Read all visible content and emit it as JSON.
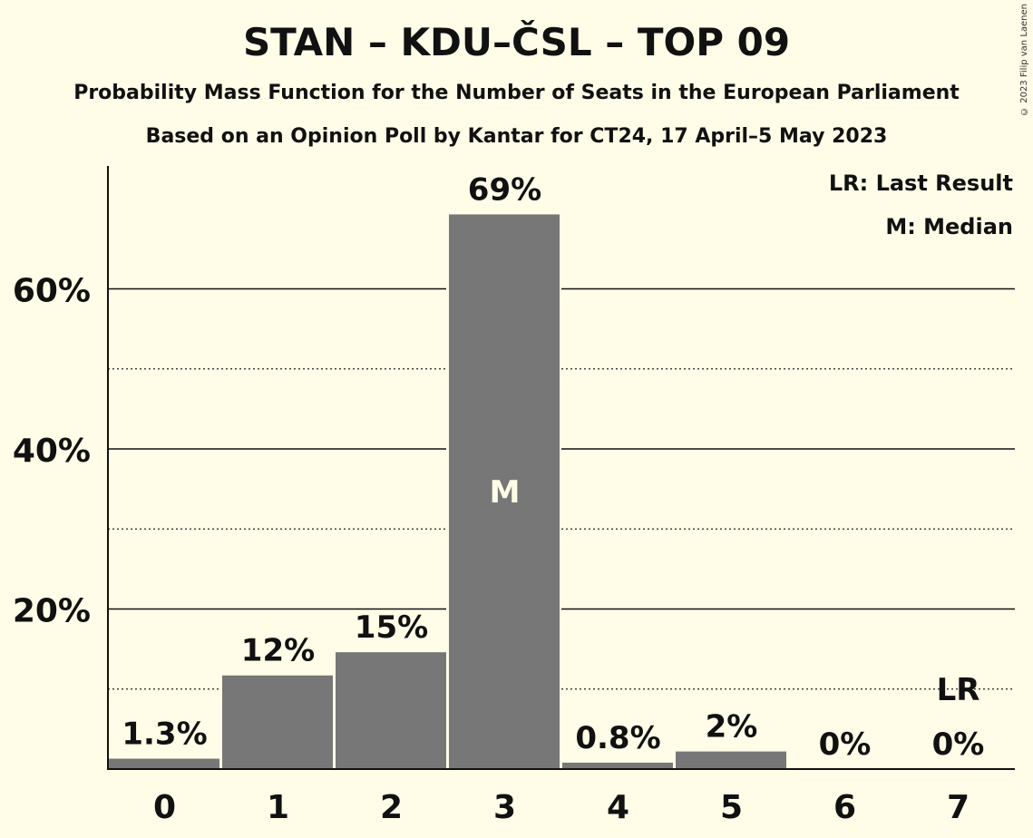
{
  "title": "STAN – KDU–ČSL – TOP 09",
  "subtitle": "Probability Mass Function for the Number of Seats in the European Parliament",
  "subtitle2": "Based on an Opinion Poll by Kantar for CT24, 17 April–5 May 2023",
  "copyright": "© 2023 Filip van Laenen",
  "legend": [
    "LR: Last Result",
    "M: Median"
  ],
  "chart_data": {
    "type": "bar",
    "categories": [
      "0",
      "1",
      "2",
      "3",
      "4",
      "5",
      "6",
      "7"
    ],
    "values": [
      1.3,
      11.7,
      14.6,
      69.3,
      0.8,
      2.2,
      0,
      0
    ],
    "data_labels": [
      "1.3%",
      "12%",
      "15%",
      "69%",
      "0.8%",
      "2%",
      "0%",
      "0%"
    ],
    "ylim": [
      0,
      75
    ],
    "yticks": [
      20,
      40,
      60
    ],
    "ytick_labels": [
      "20%",
      "40%",
      "60%"
    ],
    "minor_gridlines": [
      10,
      30,
      50
    ],
    "median_index": 3,
    "median_label": "M",
    "last_result_index": 7,
    "last_result_label": "LR",
    "last_result_value": 10,
    "bar_color": "#777777",
    "background": "#fffde7"
  }
}
